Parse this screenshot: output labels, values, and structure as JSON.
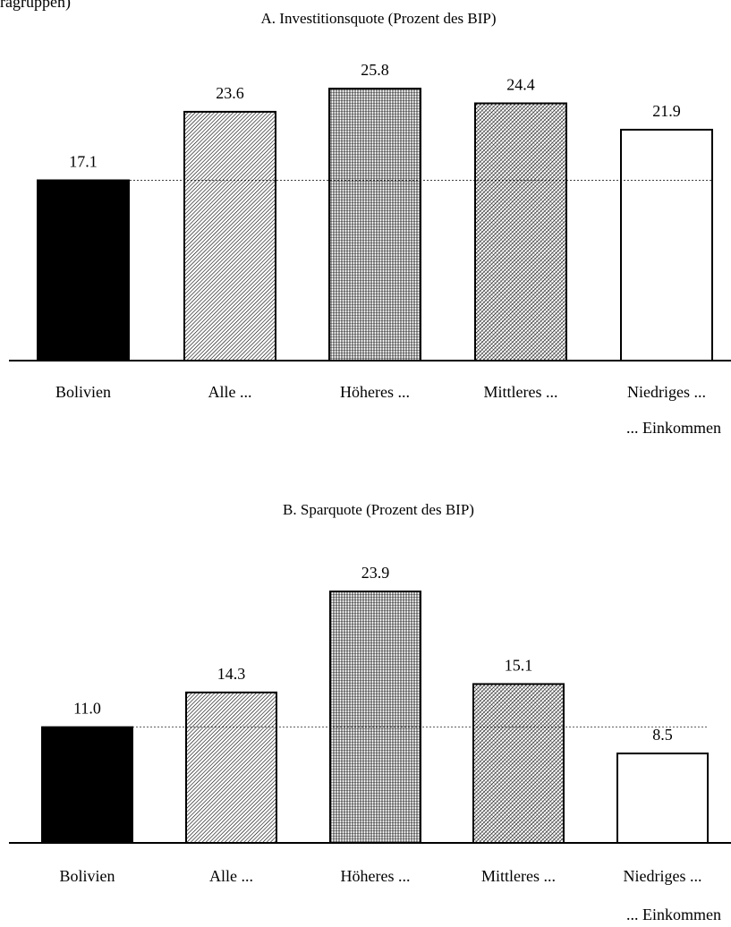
{
  "header_fragment": "ragruppen)",
  "chart_data": [
    {
      "type": "bar",
      "title": "A. Investitionsquote (Prozent des BIP)",
      "categories": [
        "Bolivien",
        "Alle ...",
        "Höheres ...",
        "Mittleres ...",
        "Niedriges ..."
      ],
      "values": [
        17.1,
        23.6,
        25.8,
        24.4,
        21.9
      ],
      "value_labels": [
        "17.1",
        "23.6",
        "25.8",
        "24.4",
        "21.9"
      ],
      "category_note": "... Einkommen",
      "reference_line": 17.1,
      "fills": [
        "solid-black",
        "diagonal-hatch",
        "fine-vertical-hatch",
        "cross-hatch",
        "white"
      ],
      "ylim": [
        0,
        25.8
      ],
      "grid": false,
      "legend": "none"
    },
    {
      "type": "bar",
      "title": "B. Sparquote (Prozent des BIP)",
      "categories": [
        "Bolivien",
        "Alle ...",
        "Höheres ...",
        "Mittleres ...",
        "Niedriges ..."
      ],
      "values": [
        11.0,
        14.3,
        23.9,
        15.1,
        8.5
      ],
      "value_labels": [
        "11.0",
        "14.3",
        "23.9",
        "15.1",
        "8.5"
      ],
      "category_note": "... Einkommen",
      "reference_line": 11.0,
      "fills": [
        "solid-black",
        "diagonal-hatch",
        "fine-vertical-hatch",
        "cross-hatch",
        "white"
      ],
      "ylim": [
        0,
        23.9
      ],
      "grid": false,
      "legend": "none"
    }
  ]
}
